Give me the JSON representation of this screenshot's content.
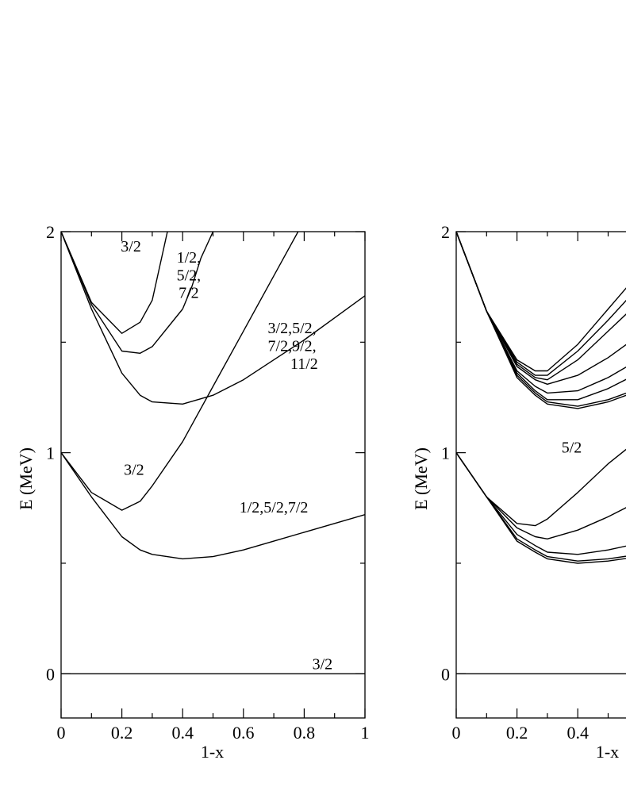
{
  "chart_data": [
    {
      "type": "line",
      "panel": "left",
      "xlabel": "1-x",
      "ylabel": "E (MeV)",
      "xlim": [
        0,
        1
      ],
      "ylim": [
        -0.2,
        2
      ],
      "xticks": [
        {
          "v": 0,
          "label": "0"
        },
        {
          "v": 0.2,
          "label": "0.2"
        },
        {
          "v": 0.4,
          "label": "0.4"
        },
        {
          "v": 0.6,
          "label": "0.6"
        },
        {
          "v": 0.8,
          "label": "0.8"
        },
        {
          "v": 1,
          "label": "1"
        }
      ],
      "yticks": [
        {
          "v": 0,
          "label": "0"
        },
        {
          "v": 1,
          "label": "1"
        },
        {
          "v": 2,
          "label": "2"
        }
      ],
      "series": [
        {
          "x": [
            0,
            1
          ],
          "y": [
            0,
            0
          ]
        },
        {
          "x": [
            0,
            0.1,
            0.2,
            0.26,
            0.3,
            0.4,
            0.5,
            0.6,
            0.7,
            0.8,
            0.9,
            1.0
          ],
          "y": [
            1,
            0.8,
            0.62,
            0.56,
            0.54,
            0.52,
            0.53,
            0.56,
            0.6,
            0.64,
            0.68,
            0.72
          ]
        },
        {
          "x": [
            0,
            0.1,
            0.2,
            0.26,
            0.3,
            0.4,
            0.5,
            0.6,
            0.7,
            0.78
          ],
          "y": [
            1,
            0.82,
            0.74,
            0.78,
            0.85,
            1.05,
            1.3,
            1.55,
            1.8,
            2.0
          ]
        },
        {
          "x": [
            0,
            0.1,
            0.2,
            0.26,
            0.3,
            0.4,
            0.5,
            0.6,
            0.7,
            0.8,
            0.9,
            1.0
          ],
          "y": [
            2,
            1.65,
            1.36,
            1.26,
            1.23,
            1.22,
            1.26,
            1.33,
            1.42,
            1.51,
            1.61,
            1.71
          ]
        },
        {
          "x": [
            0,
            0.1,
            0.2,
            0.26,
            0.3,
            0.4
          ],
          "y": [
            2,
            1.67,
            1.46,
            1.45,
            1.48,
            1.65
          ]
        },
        {
          "x": [
            0.4,
            0.43,
            0.46,
            0.5
          ],
          "y": [
            1.65,
            1.75,
            1.88,
            2.0
          ]
        },
        {
          "x": [
            0,
            0.1,
            0.2,
            0.26,
            0.3,
            0.35
          ],
          "y": [
            2,
            1.68,
            1.54,
            1.59,
            1.69,
            2.0
          ]
        }
      ],
      "annotations": [
        {
          "text": "3/2",
          "x": 0.86,
          "y": 0.02
        },
        {
          "text": "1/2,5/2,7/2",
          "x": 0.7,
          "y": 0.73
        },
        {
          "text": "3/2",
          "x": 0.24,
          "y": 0.9
        },
        {
          "text": "3/2,5/2,",
          "x": 0.76,
          "y": 1.54
        },
        {
          "text": "7/2,9/2,",
          "x": 0.76,
          "y": 1.46
        },
        {
          "text": "11/2",
          "x": 0.8,
          "y": 1.38
        },
        {
          "text": "1/2,",
          "x": 0.42,
          "y": 1.86
        },
        {
          "text": "5/2,",
          "x": 0.42,
          "y": 1.78
        },
        {
          "text": "7/2",
          "x": 0.42,
          "y": 1.7
        },
        {
          "text": "3/2",
          "x": 0.23,
          "y": 1.91
        }
      ]
    },
    {
      "type": "line",
      "panel": "right",
      "xlabel": "1-x",
      "ylabel": "E (MeV)",
      "xlim": [
        0,
        1
      ],
      "ylim": [
        -0.2,
        2
      ],
      "xticks": [
        {
          "v": 0,
          "label": "0"
        },
        {
          "v": 0.2,
          "label": "0.2"
        },
        {
          "v": 0.4,
          "label": "0.4"
        }
      ],
      "yticks": [
        {
          "v": 0,
          "label": "0"
        },
        {
          "v": 1,
          "label": "1"
        },
        {
          "v": 2,
          "label": "2"
        }
      ],
      "series": [
        {
          "x": [
            0,
            0.6
          ],
          "y": [
            0,
            0
          ]
        },
        {
          "x": [
            0,
            0.1,
            0.2,
            0.26,
            0.3,
            0.4,
            0.5,
            0.6
          ],
          "y": [
            1,
            0.8,
            0.6,
            0.55,
            0.52,
            0.5,
            0.51,
            0.53
          ]
        },
        {
          "x": [
            0,
            0.1,
            0.2,
            0.26,
            0.3,
            0.4,
            0.5,
            0.6
          ],
          "y": [
            1,
            0.8,
            0.61,
            0.56,
            0.53,
            0.51,
            0.52,
            0.54
          ]
        },
        {
          "x": [
            0,
            0.1,
            0.2,
            0.26,
            0.3,
            0.4,
            0.5,
            0.6
          ],
          "y": [
            1,
            0.8,
            0.63,
            0.58,
            0.55,
            0.54,
            0.56,
            0.59
          ]
        },
        {
          "x": [
            0,
            0.1,
            0.2,
            0.26,
            0.3,
            0.4,
            0.5,
            0.6
          ],
          "y": [
            1,
            0.8,
            0.66,
            0.62,
            0.61,
            0.65,
            0.71,
            0.78
          ]
        },
        {
          "x": [
            0,
            0.1,
            0.2,
            0.26,
            0.3,
            0.4,
            0.5,
            0.6
          ],
          "y": [
            1,
            0.8,
            0.68,
            0.67,
            0.7,
            0.82,
            0.95,
            1.06
          ]
        },
        {
          "x": [
            0,
            0.1,
            0.2,
            0.26,
            0.3,
            0.4,
            0.5,
            0.6
          ],
          "y": [
            2,
            1.64,
            1.34,
            1.26,
            1.22,
            1.2,
            1.23,
            1.28
          ]
        },
        {
          "x": [
            0,
            0.1,
            0.2,
            0.26,
            0.3,
            0.4,
            0.5,
            0.6
          ],
          "y": [
            2,
            1.64,
            1.35,
            1.27,
            1.23,
            1.21,
            1.24,
            1.29
          ]
        },
        {
          "x": [
            0,
            0.1,
            0.2,
            0.26,
            0.3,
            0.4,
            0.5,
            0.6
          ],
          "y": [
            2,
            1.64,
            1.36,
            1.28,
            1.24,
            1.24,
            1.29,
            1.36
          ]
        },
        {
          "x": [
            0,
            0.1,
            0.2,
            0.26,
            0.3,
            0.4,
            0.5,
            0.6
          ],
          "y": [
            2,
            1.64,
            1.37,
            1.3,
            1.27,
            1.28,
            1.34,
            1.42
          ]
        },
        {
          "x": [
            0,
            0.1,
            0.2,
            0.26,
            0.3,
            0.4,
            0.5,
            0.6
          ],
          "y": [
            2,
            1.64,
            1.39,
            1.33,
            1.31,
            1.35,
            1.43,
            1.53
          ]
        },
        {
          "x": [
            0,
            0.1,
            0.2,
            0.26,
            0.3,
            0.4,
            0.5,
            0.6
          ],
          "y": [
            2,
            1.64,
            1.4,
            1.34,
            1.33,
            1.42,
            1.55,
            1.68
          ]
        },
        {
          "x": [
            0,
            0.1,
            0.2,
            0.26,
            0.3,
            0.4,
            0.5,
            0.6
          ],
          "y": [
            2,
            1.64,
            1.41,
            1.35,
            1.35,
            1.46,
            1.6,
            1.75
          ]
        },
        {
          "x": [
            0,
            0.1,
            0.2,
            0.26,
            0.3,
            0.4,
            0.5,
            0.6
          ],
          "y": [
            2,
            1.64,
            1.42,
            1.37,
            1.37,
            1.49,
            1.65,
            1.81
          ]
        }
      ],
      "annotations": [
        {
          "text": "5/2",
          "x": 0.38,
          "y": 1.0
        }
      ]
    }
  ]
}
